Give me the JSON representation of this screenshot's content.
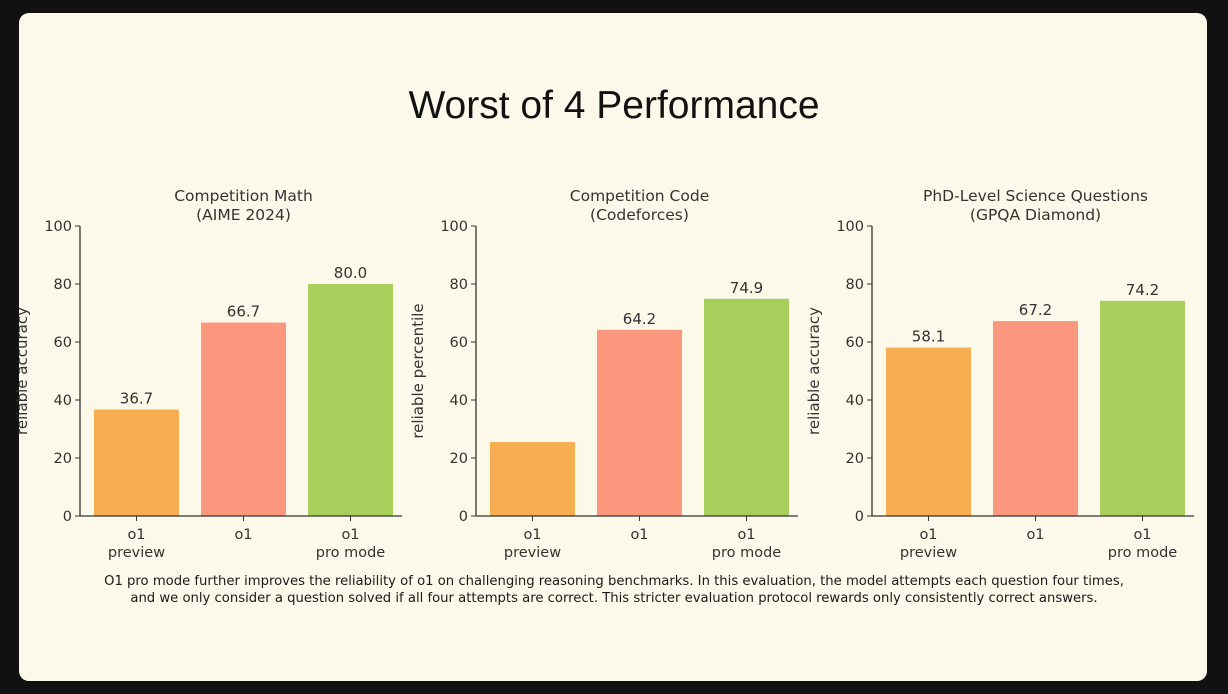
{
  "page_title": "Worst of 4 Performance",
  "caption_lines": [
    "O1 pro mode further improves the reliability of o1 on challenging reasoning benchmarks. In this evaluation, the model attempts each question four times,",
    "and we only consider a question solved if all four attempts are correct. This stricter evaluation protocol rewards only consistently correct answers."
  ],
  "colors": {
    "o1_preview": "#f6ae51",
    "o1": "#fa977c",
    "pro_mode": "#a8cf5b",
    "text": "#333333",
    "background": "#fcf9ea"
  },
  "chart_data": [
    {
      "type": "bar",
      "title": "Competition Math",
      "subtitle": "(AIME 2024)",
      "ylabel": "reliable accuracy",
      "ylim": [
        0,
        100
      ],
      "yticks": [
        0,
        20,
        40,
        60,
        80,
        100
      ],
      "categories": [
        [
          "o1",
          "preview"
        ],
        [
          "o1"
        ],
        [
          "o1",
          "pro mode"
        ]
      ],
      "values": [
        36.7,
        66.7,
        80.0
      ],
      "value_labels": [
        "36.7",
        "66.7",
        "80.0"
      ]
    },
    {
      "type": "bar",
      "title": "Competition Code",
      "subtitle": "(Codeforces)",
      "ylabel": "reliable percentile",
      "ylim": [
        0,
        100
      ],
      "yticks": [
        0,
        20,
        40,
        60,
        80,
        100
      ],
      "categories": [
        [
          "o1",
          "preview"
        ],
        [
          "o1"
        ],
        [
          "o1",
          "pro mode"
        ]
      ],
      "values": [
        25.5,
        64.2,
        74.9
      ],
      "value_labels": [
        "",
        "64.2",
        "74.9"
      ]
    },
    {
      "type": "bar",
      "title": "PhD-Level Science Questions",
      "subtitle": "(GPQA Diamond)",
      "ylabel": "reliable accuracy",
      "ylim": [
        0,
        100
      ],
      "yticks": [
        0,
        20,
        40,
        60,
        80,
        100
      ],
      "categories": [
        [
          "o1",
          "preview"
        ],
        [
          "o1"
        ],
        [
          "o1",
          "pro mode"
        ]
      ],
      "values": [
        58.1,
        67.2,
        74.2
      ],
      "value_labels": [
        "58.1",
        "67.2",
        "74.2"
      ]
    }
  ]
}
